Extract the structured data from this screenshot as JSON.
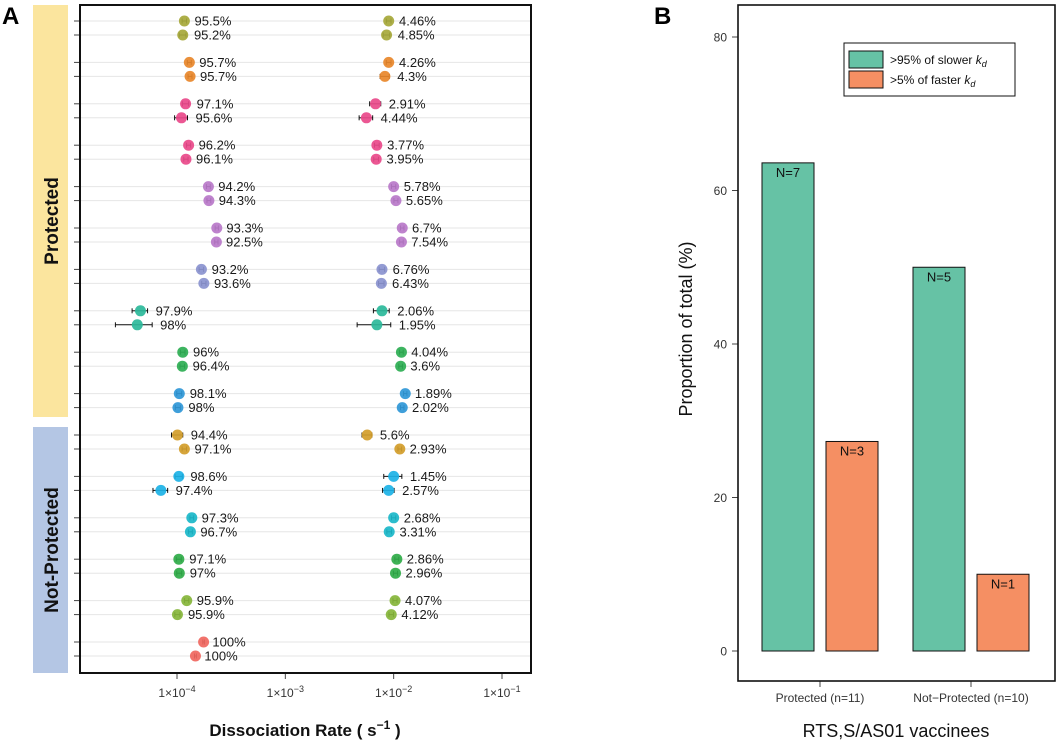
{
  "panel_a": {
    "letter": "A",
    "group_labels": {
      "protected": "Protected",
      "not_protected": "Not-Protected"
    },
    "colors": {
      "protected_band": "#fbe59e",
      "not_protected_band": "#b4c6e4"
    },
    "axis": {
      "title_main": "Dissociation Rate ( s",
      "title_sup": "−1",
      "title_end": " )",
      "ticks": [
        {
          "value": 0.0001,
          "mant": "1×10",
          "exp": "−4"
        },
        {
          "value": 0.001,
          "mant": "1×10",
          "exp": "−3"
        },
        {
          "value": 0.01,
          "mant": "1×10",
          "exp": "−2"
        },
        {
          "value": 0.1,
          "mant": "1×10",
          "exp": "−1"
        }
      ]
    }
  },
  "panel_b": {
    "letter": "B",
    "legend": [
      {
        "pre": ">95% of slower ",
        "sym": "k",
        "sub": "d",
        "color": "#66c2a5"
      },
      {
        "pre": ">5% of faster ",
        "sym": "k",
        "sub": "d",
        "color": "#f58f63"
      }
    ]
  },
  "chart_data": [
    {
      "type": "scatter",
      "title": "",
      "xlabel": "Dissociation Rate ( s^-1 )",
      "ylabel": "",
      "xscale": "log",
      "xlim": [
        1e-05,
        0.2
      ],
      "groups": [
        "Protected",
        "Not-Protected"
      ],
      "series": [
        {
          "group": "Protected",
          "color": "#a6a83a",
          "points": [
            {
              "slow": {
                "kd": 0.000117,
                "err": 5.5e-06,
                "label": "95.5%"
              },
              "fast": {
                "kd": 0.009,
                "err": 0.00045,
                "label": "4.46%"
              }
            },
            {
              "slow": {
                "kd": 0.000113,
                "err": 8e-06,
                "label": "95.2%"
              },
              "fast": {
                "kd": 0.0086,
                "err": 0.0006,
                "label": "4.85%"
              }
            }
          ]
        },
        {
          "group": "Protected",
          "color": "#e8872a",
          "points": [
            {
              "slow": {
                "kd": 0.00013,
                "err": 5.5e-06,
                "label": "95.7%"
              },
              "fast": {
                "kd": 0.009,
                "err": 0.00045,
                "label": "4.26%"
              }
            },
            {
              "slow": {
                "kd": 0.000132,
                "err": 5.5e-06,
                "label": "95.7%"
              },
              "fast": {
                "kd": 0.0083,
                "err": 0.0008,
                "label": "4.3%"
              }
            }
          ]
        },
        {
          "group": "Protected",
          "color": "#e9498a",
          "points": [
            {
              "slow": {
                "kd": 0.00012,
                "err": 8e-06,
                "label": "97.1%"
              },
              "fast": {
                "kd": 0.0068,
                "err": 0.0008,
                "label": "2.91%"
              }
            },
            {
              "slow": {
                "kd": 0.00011,
                "err": 1.5e-05,
                "label": "95.6%"
              },
              "fast": {
                "kd": 0.0056,
                "err": 0.0008,
                "label": "4.44%"
              }
            }
          ]
        },
        {
          "group": "Protected",
          "color": "#e9498a",
          "points": [
            {
              "slow": {
                "kd": 0.000128,
                "err": 5.5e-06,
                "label": "96.2%"
              },
              "fast": {
                "kd": 0.007,
                "err": 0.00035,
                "label": "3.77%"
              }
            },
            {
              "slow": {
                "kd": 0.000121,
                "err": 5.5e-06,
                "label": "96.1%"
              },
              "fast": {
                "kd": 0.0069,
                "err": 0.00035,
                "label": "3.95%"
              }
            }
          ]
        },
        {
          "group": "Protected",
          "color": "#b878c9",
          "points": [
            {
              "slow": {
                "kd": 0.000195,
                "err": 8e-06,
                "label": "94.2%"
              },
              "fast": {
                "kd": 0.01,
                "err": 0.00045,
                "label": "5.78%"
              }
            },
            {
              "slow": {
                "kd": 0.000197,
                "err": 8e-06,
                "label": "94.3%"
              },
              "fast": {
                "kd": 0.0105,
                "err": 0.00045,
                "label": "5.65%"
              }
            }
          ]
        },
        {
          "group": "Protected",
          "color": "#b878c9",
          "points": [
            {
              "slow": {
                "kd": 0.000233,
                "err": 8e-06,
                "label": "93.3%"
              },
              "fast": {
                "kd": 0.012,
                "err": 0.00045,
                "label": "6.7%"
              }
            },
            {
              "slow": {
                "kd": 0.000231,
                "err": 8e-06,
                "label": "92.5%"
              },
              "fast": {
                "kd": 0.0118,
                "err": 0.00045,
                "label": "7.54%"
              }
            }
          ]
        },
        {
          "group": "Protected",
          "color": "#8a93cf",
          "points": [
            {
              "slow": {
                "kd": 0.000168,
                "err": 8e-06,
                "label": "93.2%"
              },
              "fast": {
                "kd": 0.0078,
                "err": 0.00045,
                "label": "6.76%"
              }
            },
            {
              "slow": {
                "kd": 0.000177,
                "err": 8e-06,
                "label": "93.6%"
              },
              "fast": {
                "kd": 0.0077,
                "err": 0.00045,
                "label": "6.43%"
              }
            }
          ]
        },
        {
          "group": "Protected",
          "color": "#2bb89a",
          "points": [
            {
              "slow": {
                "kd": 4.6e-05,
                "err": 7.5e-06,
                "label": "97.9%"
              },
              "fast": {
                "kd": 0.0078,
                "err": 0.0013,
                "label": "2.06%"
              }
            },
            {
              "slow": {
                "kd": 4.3e-05,
                "err": 1.6e-05,
                "label": "98%"
              },
              "fast": {
                "kd": 0.007,
                "err": 0.0024,
                "label": "1.95%"
              }
            }
          ]
        },
        {
          "group": "Protected",
          "color": "#2cae52",
          "points": [
            {
              "slow": {
                "kd": 0.000113,
                "err": 5.5e-06,
                "label": "96%"
              },
              "fast": {
                "kd": 0.0118,
                "err": 0.00045,
                "label": "4.04%"
              }
            },
            {
              "slow": {
                "kd": 0.000112,
                "err": 5.5e-06,
                "label": "96.4%"
              },
              "fast": {
                "kd": 0.0116,
                "err": 0.00045,
                "label": "3.6%"
              }
            }
          ]
        },
        {
          "group": "Protected",
          "color": "#2f97d7",
          "points": [
            {
              "slow": {
                "kd": 0.000105,
                "err": 5.5e-06,
                "label": "98.1%"
              },
              "fast": {
                "kd": 0.0128,
                "err": 0.00045,
                "label": "1.89%"
              }
            },
            {
              "slow": {
                "kd": 0.000102,
                "err": 5.5e-06,
                "label": "98%"
              },
              "fast": {
                "kd": 0.012,
                "err": 0.00045,
                "label": "2.02%"
              }
            }
          ]
        },
        {
          "group": "Not-Protected",
          "color": "#d29d2a",
          "points": [
            {
              "slow": {
                "kd": 0.000101,
                "err": 1.2e-05,
                "label": "94.4%"
              },
              "fast": {
                "kd": 0.0057,
                "err": 0.0006,
                "label": "5.6%"
              }
            },
            {
              "slow": {
                "kd": 0.000117,
                "err": 5.5e-06,
                "label": "97.1%"
              },
              "fast": {
                "kd": 0.0114,
                "err": 0.00045,
                "label": "2.93%"
              }
            }
          ]
        },
        {
          "group": "Not-Protected",
          "color": "#1cb2e6",
          "points": [
            {
              "slow": {
                "kd": 0.000104,
                "err": 8e-06,
                "label": "98.6%"
              },
              "fast": {
                "kd": 0.01,
                "err": 0.0019,
                "label": "1.45%"
              }
            },
            {
              "slow": {
                "kd": 7.1e-05,
                "err": 1.1e-05,
                "label": "97.4%"
              },
              "fast": {
                "kd": 0.009,
                "err": 0.0011,
                "label": "2.57%"
              }
            }
          ]
        },
        {
          "group": "Not-Protected",
          "color": "#1ab7c9",
          "points": [
            {
              "slow": {
                "kd": 0.000137,
                "err": 5.5e-06,
                "label": "97.3%"
              },
              "fast": {
                "kd": 0.01,
                "err": 0.00045,
                "label": "2.68%"
              }
            },
            {
              "slow": {
                "kd": 0.000133,
                "err": 5.5e-06,
                "label": "96.7%"
              },
              "fast": {
                "kd": 0.0091,
                "err": 0.00045,
                "label": "3.31%"
              }
            }
          ]
        },
        {
          "group": "Not-Protected",
          "color": "#2fab48",
          "points": [
            {
              "slow": {
                "kd": 0.000104,
                "err": 5.5e-06,
                "label": "97.1%"
              },
              "fast": {
                "kd": 0.0107,
                "err": 0.00045,
                "label": "2.86%"
              }
            },
            {
              "slow": {
                "kd": 0.000105,
                "err": 5.5e-06,
                "label": "97%"
              },
              "fast": {
                "kd": 0.0104,
                "err": 0.00045,
                "label": "2.96%"
              }
            }
          ]
        },
        {
          "group": "Not-Protected",
          "color": "#86b53a",
          "points": [
            {
              "slow": {
                "kd": 0.000123,
                "err": 5.5e-06,
                "label": "95.9%"
              },
              "fast": {
                "kd": 0.0103,
                "err": 0.00045,
                "label": "4.07%"
              }
            },
            {
              "slow": {
                "kd": 0.000101,
                "err": 5.5e-06,
                "label": "95.9%"
              },
              "fast": {
                "kd": 0.0095,
                "err": 0.00045,
                "label": "4.12%"
              }
            }
          ]
        },
        {
          "group": "Not-Protected",
          "color": "#f0675f",
          "points": [
            {
              "slow": {
                "kd": 0.000176,
                "err": 3e-06,
                "label": "100%"
              },
              "fast": null
            },
            {
              "slow": {
                "kd": 0.000148,
                "err": 3e-06,
                "label": "100%"
              },
              "fast": null
            }
          ]
        }
      ]
    },
    {
      "type": "bar",
      "title": "",
      "xlabel": "RTS,S/AS01 vaccinees",
      "ylabel": "Proportion of total (%)",
      "ylim": [
        0,
        80
      ],
      "yticks": [
        "0",
        "20",
        "40",
        "60",
        "80"
      ],
      "categories": [
        "Protected (n=11)",
        "Not−Protected (n=10)"
      ],
      "series": [
        {
          "name": ">95% of slower kd",
          "color": "#66c2a5",
          "values": [
            63.6,
            50
          ],
          "labels": [
            "N=7",
            "N=5"
          ]
        },
        {
          "name": ">5% of faster kd",
          "color": "#f58f63",
          "values": [
            27.3,
            10
          ],
          "labels": [
            "N=3",
            "N=1"
          ]
        }
      ],
      "legend": "top-right"
    }
  ]
}
